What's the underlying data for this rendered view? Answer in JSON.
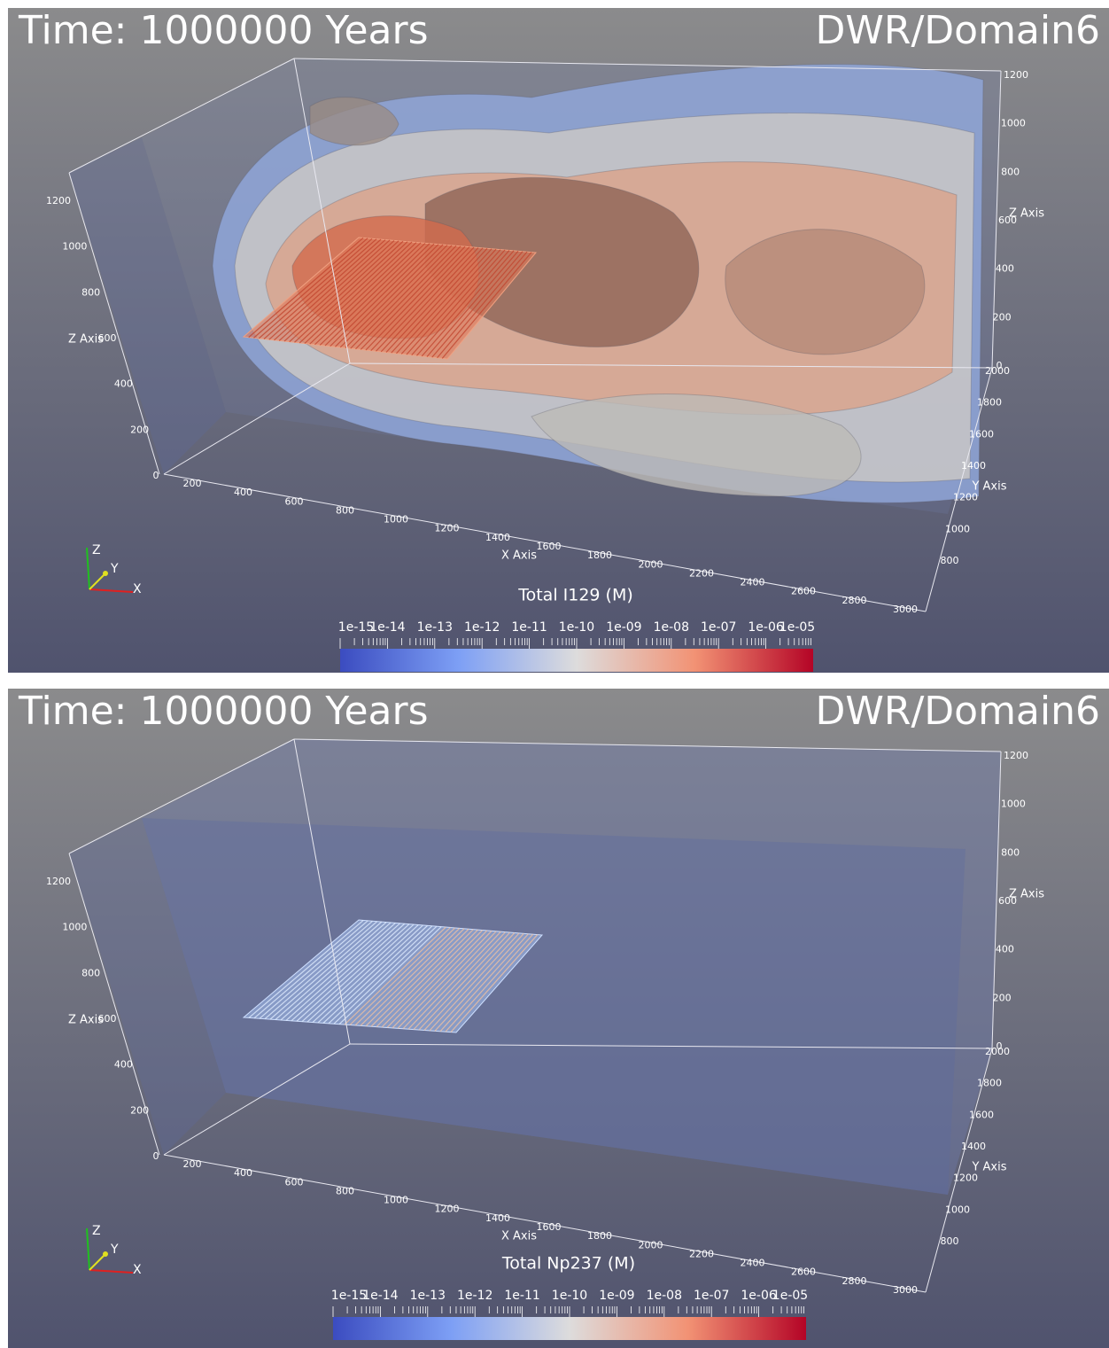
{
  "panels": [
    {
      "time": "Time: 1000000 Years",
      "domain": "DWR/Domain6",
      "colorbar": {
        "title": "Total I129 (M)",
        "labels": [
          "1e-15",
          "1e-14",
          "1e-13",
          "1e-12",
          "1e-11",
          "1e-10",
          "1e-09",
          "1e-08",
          "1e-07",
          "1e-06",
          "1e-05"
        ]
      },
      "axes": {
        "x": {
          "title": "X Axis",
          "ticks": [
            "200",
            "400",
            "600",
            "800",
            "1000",
            "1200",
            "1400",
            "1600",
            "1800",
            "2000",
            "2200",
            "2400",
            "2600",
            "2800",
            "3000"
          ]
        },
        "y": {
          "title": "Y Axis",
          "ticks": [
            "800",
            "1000",
            "1200",
            "1400",
            "1600",
            "1800",
            "2000"
          ]
        },
        "z_left": {
          "title": "Z Axis",
          "ticks": [
            "0",
            "200",
            "400",
            "600",
            "800",
            "1000",
            "1200"
          ]
        },
        "z_right": {
          "title": "Z Axis",
          "ticks": [
            "0",
            "200",
            "400",
            "600",
            "800",
            "1000",
            "1200"
          ]
        }
      },
      "triad": [
        "X",
        "Y",
        "Z"
      ]
    },
    {
      "time": "Time: 1000000 Years",
      "domain": "DWR/Domain6",
      "colorbar": {
        "title": "Total Np237 (M)",
        "labels": [
          "1e-15",
          "1e-14",
          "1e-13",
          "1e-12",
          "1e-11",
          "1e-10",
          "1e-09",
          "1e-08",
          "1e-07",
          "1e-06",
          "1e-05"
        ]
      },
      "axes": {
        "x": {
          "title": "X Axis",
          "ticks": [
            "200",
            "400",
            "600",
            "800",
            "1000",
            "1200",
            "1400",
            "1600",
            "1800",
            "2000",
            "2200",
            "2400",
            "2600",
            "2800",
            "3000"
          ]
        },
        "y": {
          "title": "Y Axis",
          "ticks": [
            "800",
            "1000",
            "1200",
            "1400",
            "1600",
            "1800",
            "2000"
          ]
        },
        "z_left": {
          "title": "Z Axis",
          "ticks": [
            "0",
            "200",
            "400",
            "600",
            "800",
            "1000",
            "1200"
          ]
        },
        "z_right": {
          "title": "Z Axis",
          "ticks": [
            "0",
            "200",
            "400",
            "600",
            "800",
            "1000",
            "1200"
          ]
        }
      },
      "triad": [
        "X",
        "Y",
        "Z"
      ]
    }
  ]
}
